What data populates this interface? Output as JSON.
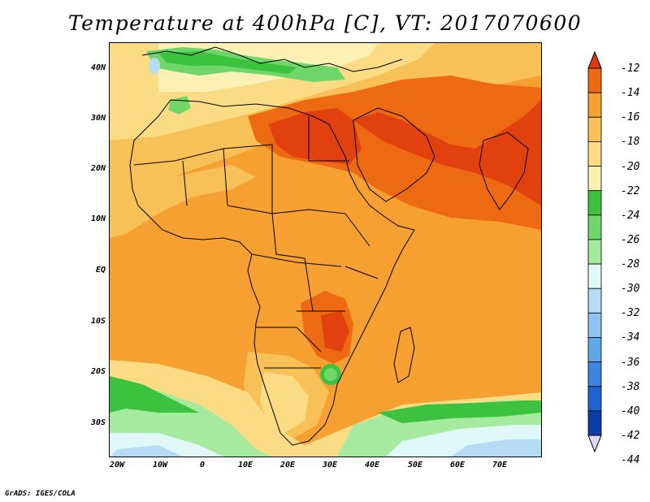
{
  "title": "Temperature at 400hPa [C], VT: 2017070600",
  "footer": "GrADS: IGES/COLA",
  "lat_labels": [
    "40N",
    "30N",
    "20N",
    "10N",
    "EQ",
    "10S",
    "20S",
    "30S"
  ],
  "lon_labels": [
    "20W",
    "10W",
    "0",
    "10E",
    "20E",
    "30E",
    "40E",
    "50E",
    "60E",
    "70E"
  ],
  "colorbar": {
    "labels": [
      "-12",
      "-14",
      "-16",
      "-18",
      "-20",
      "-22",
      "-24",
      "-26",
      "-28",
      "-30",
      "-32",
      "-34",
      "-36",
      "-38",
      "-40",
      "-42",
      "-44"
    ],
    "colors": [
      "#dd3a10",
      "#ee6a12",
      "#f5a030",
      "#f8c157",
      "#fbdc85",
      "#fdf0b4",
      "#3cc23f",
      "#6fd76a",
      "#a6ea9f",
      "#e0f8f8",
      "#b6dcf5",
      "#8fc4f0",
      "#5ea6ea",
      "#3a86e0",
      "#1d64d0",
      "#0c3ea8",
      "#0a1f7a"
    ],
    "top_arrow_color": "#dd3a10",
    "bottom_arrow_color": "#ddd9f5"
  },
  "map_colors": {
    "background": "#f5a030",
    "hot": "#ee6a12",
    "hottest": "#e0410f",
    "warm": "#f8c157",
    "mild": "#fbdc85",
    "pale": "#fdf0b4",
    "green": "#3cc23f",
    "lightgreen": "#6fd76a",
    "palegreen": "#a6ea9f",
    "cyan": "#e0f8f8",
    "lightblue": "#b6dcf5",
    "blue": "#8fc4f0"
  }
}
